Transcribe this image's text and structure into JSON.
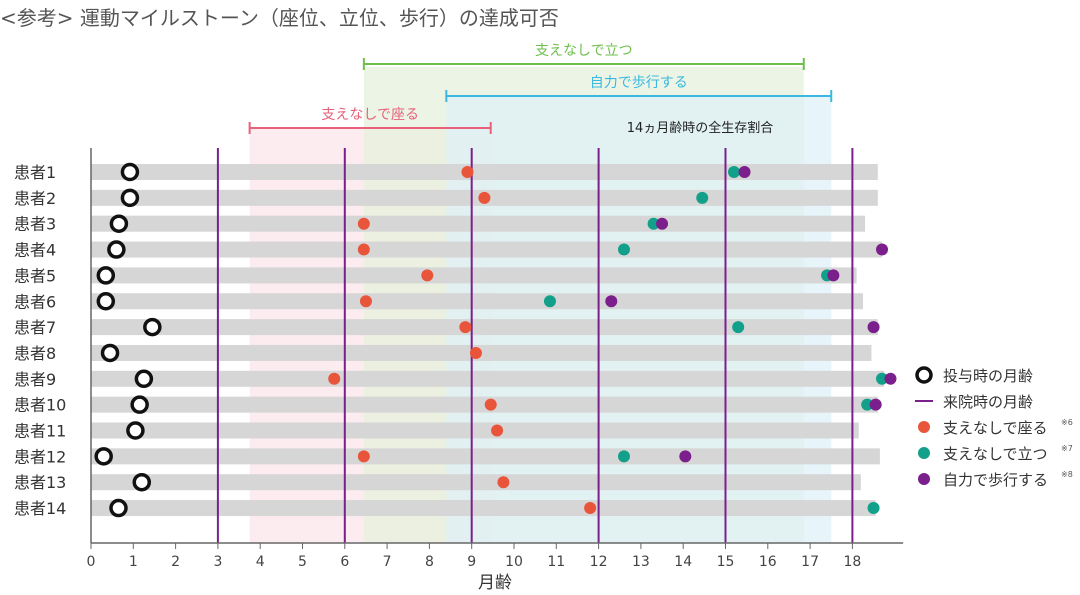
{
  "title": "<参考> 運動マイルストーン（座位、立位、歩行）の達成可否",
  "chart_data": {
    "type": "scatter",
    "xlabel": "月齢",
    "xlim": [
      0,
      19
    ],
    "xticks": [
      0,
      1,
      2,
      3,
      4,
      5,
      6,
      7,
      8,
      9,
      10,
      11,
      12,
      13,
      14,
      15,
      16,
      17,
      18
    ],
    "visit_lines": [
      3,
      6,
      9,
      12,
      15,
      18
    ],
    "ranges": [
      {
        "name": "支えなしで座る",
        "from": 3.75,
        "to": 9.45,
        "color": "#e8607a",
        "fill": "#fbe4ea"
      },
      {
        "name": "支えなしで立つ",
        "from": 6.45,
        "to": 16.85,
        "color": "#6cbf4a",
        "fill": "#e5f2dc"
      },
      {
        "name": "自力で歩行する",
        "from": 8.4,
        "to": 17.5,
        "color": "#3bb8e0",
        "fill": "#dff0f7"
      }
    ],
    "annotation": "14ヵ月齢時の全生存割合",
    "colors": {
      "sit": "#e8553a",
      "stand": "#12a08a",
      "walk": "#7a1f8c",
      "visit": "#7a1f8c",
      "bar": "#d6d6d6"
    },
    "patients": [
      {
        "label": "患者1",
        "dose": 0.92,
        "sit": 8.9,
        "stand": 15.2,
        "walk": 15.45,
        "end": 18.6
      },
      {
        "label": "患者2",
        "dose": 0.92,
        "sit": 9.3,
        "stand": 14.45,
        "walk": null,
        "end": 18.6
      },
      {
        "label": "患者3",
        "dose": 0.66,
        "sit": 6.45,
        "stand": 13.3,
        "walk": 13.5,
        "end": 18.3
      },
      {
        "label": "患者4",
        "dose": 0.6,
        "sit": 6.45,
        "stand": 12.6,
        "walk": 18.7,
        "end": 18.7
      },
      {
        "label": "患者5",
        "dose": 0.35,
        "sit": 7.95,
        "stand": 17.4,
        "walk": 17.55,
        "end": 18.1
      },
      {
        "label": "患者6",
        "dose": 0.35,
        "sit": 6.5,
        "stand": 10.85,
        "walk": 12.3,
        "end": 18.25
      },
      {
        "label": "患者7",
        "dose": 1.45,
        "sit": 8.85,
        "stand": 15.3,
        "walk": 18.5,
        "end": 18.6
      },
      {
        "label": "患者8",
        "dose": 0.45,
        "sit": 9.1,
        "stand": null,
        "walk": null,
        "end": 18.45
      },
      {
        "label": "患者9",
        "dose": 1.25,
        "sit": 5.75,
        "stand": 18.7,
        "walk": 18.9,
        "end": 18.75
      },
      {
        "label": "患者10",
        "dose": 1.15,
        "sit": 9.45,
        "stand": 18.35,
        "walk": 18.55,
        "end": 18.6
      },
      {
        "label": "患者11",
        "dose": 1.05,
        "sit": 9.6,
        "stand": null,
        "walk": null,
        "end": 18.15
      },
      {
        "label": "患者12",
        "dose": 0.3,
        "sit": 6.45,
        "stand": 12.6,
        "walk": 14.05,
        "end": 18.65
      },
      {
        "label": "患者13",
        "dose": 1.2,
        "sit": 9.75,
        "stand": null,
        "walk": null,
        "end": 18.2
      },
      {
        "label": "患者14",
        "dose": 0.65,
        "sit": 11.8,
        "stand": 18.5,
        "walk": null,
        "end": 18.55
      }
    ],
    "legend": {
      "placement": "right",
      "items": [
        {
          "key": "dose",
          "label": "投与時の月齢",
          "sup": ""
        },
        {
          "key": "visit",
          "label": "来院時の月齢",
          "sup": ""
        },
        {
          "key": "sit",
          "label": "支えなしで座る",
          "sup": "※6"
        },
        {
          "key": "stand",
          "label": "支えなしで立つ",
          "sup": "※7"
        },
        {
          "key": "walk",
          "label": "自力で歩行する",
          "sup": "※8"
        }
      ]
    }
  }
}
